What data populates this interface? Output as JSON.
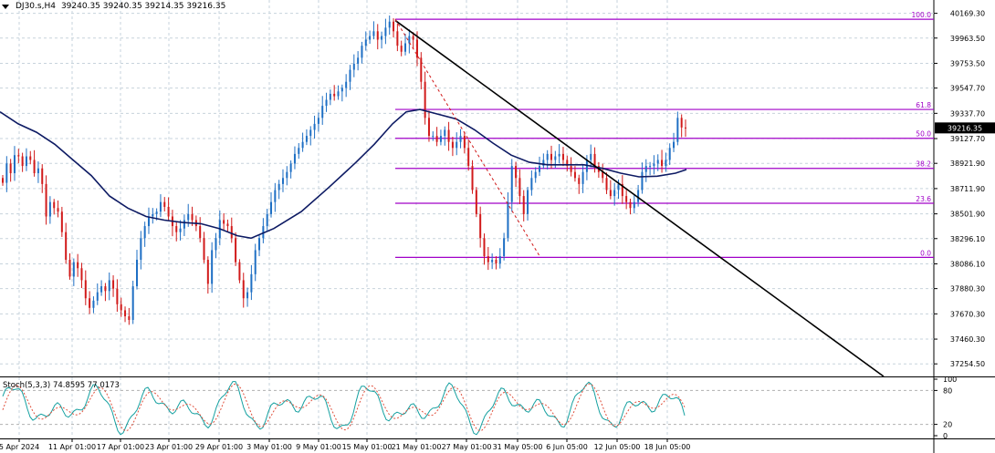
{
  "header": {
    "symbol": "DJ30.s,H4",
    "ohlc": "39240.35 39240.35 39214.35 39216.35"
  },
  "colors": {
    "bull": "#1e6fc4",
    "bear": "#d11a1a",
    "ma": "#0d1a63",
    "fib": "#a000c8",
    "trend": "#000000",
    "grid": "#c7d3dc",
    "stoch_main": "#14a0a0",
    "stoch_signal": "#e0503c",
    "price_tag": "#000000"
  },
  "chart_data": [
    {
      "type": "candlestick",
      "symbol": "DJ30.s,H4",
      "ylim": [
        37150,
        40280
      ],
      "y_ticks": [
        "40169.30",
        "39963.50",
        "39753.50",
        "39547.70",
        "39337.70",
        "39127.70",
        "38921.90",
        "38711.90",
        "38501.90",
        "38296.10",
        "38086.10",
        "37880.30",
        "37670.30",
        "37460.30",
        "37254.50"
      ],
      "x_ticks": [
        "5 Apr 2024",
        "11 Apr 01:00",
        "17 Apr 01:00",
        "23 Apr 01:00",
        "29 Apr 01:00",
        "3 May 01:00",
        "9 May 01:00",
        "15 May 01:00",
        "21 May 01:00",
        "27 May 01:00",
        "31 May 05:00",
        "6 Jun 05:00",
        "12 Jun 05:00",
        "18 Jun 05:00"
      ],
      "last_price": "39216.35",
      "closes": [
        38760,
        38920,
        38840,
        38990,
        38980,
        38900,
        38980,
        38950,
        38840,
        38880,
        38750,
        38480,
        38600,
        38550,
        38520,
        38350,
        38120,
        37980,
        38100,
        38050,
        37950,
        37800,
        37720,
        37780,
        37850,
        37900,
        37860,
        37950,
        37880,
        37750,
        37700,
        37650,
        37620,
        37900,
        38120,
        38300,
        38400,
        38480,
        38500,
        38520,
        38600,
        38560,
        38480,
        38400,
        38350,
        38380,
        38450,
        38500,
        38450,
        38400,
        38300,
        38120,
        37920,
        38200,
        38300,
        38450,
        38420,
        38400,
        38300,
        38100,
        37950,
        37800,
        37850,
        38000,
        38200,
        38300,
        38400,
        38500,
        38600,
        38700,
        38750,
        38800,
        38850,
        38920,
        39000,
        39050,
        39100,
        39150,
        39200,
        39250,
        39300,
        39400,
        39450,
        39500,
        39480,
        39520,
        39550,
        39600,
        39700,
        39750,
        39800,
        39900,
        39950,
        39980,
        40020,
        39950,
        39980,
        40050,
        40100,
        40020,
        39900,
        39850,
        39920,
        39980,
        39950,
        39800,
        39600,
        39300,
        39150,
        39150,
        39100,
        39150,
        39200,
        39100,
        39050,
        39100,
        39150,
        39050,
        38900,
        38700,
        38500,
        38300,
        38150,
        38100,
        38120,
        38090,
        38150,
        38300,
        38600,
        38900,
        38800,
        38650,
        38500,
        38700,
        38800,
        38850,
        38900,
        38950,
        39000,
        38950,
        38980,
        39000,
        38950,
        38900,
        38850,
        38800,
        38750,
        38850,
        38950,
        39000,
        38900,
        38850,
        38800,
        38700,
        38650,
        38700,
        38750,
        38650,
        38600,
        38550,
        38600,
        38700,
        38850,
        38900,
        38900,
        38920,
        38950,
        38900,
        38950,
        39050,
        39100,
        39300,
        39220,
        39216
      ],
      "ma_points": [
        [
          0,
          39350
        ],
        [
          20,
          39250
        ],
        [
          40,
          39180
        ],
        [
          60,
          39080
        ],
        [
          80,
          38950
        ],
        [
          100,
          38820
        ],
        [
          120,
          38650
        ],
        [
          140,
          38550
        ],
        [
          160,
          38480
        ],
        [
          180,
          38450
        ],
        [
          200,
          38430
        ],
        [
          220,
          38420
        ],
        [
          240,
          38380
        ],
        [
          260,
          38320
        ],
        [
          275,
          38300
        ],
        [
          300,
          38380
        ],
        [
          330,
          38520
        ],
        [
          360,
          38720
        ],
        [
          390,
          38930
        ],
        [
          410,
          39080
        ],
        [
          430,
          39250
        ],
        [
          445,
          39350
        ],
        [
          460,
          39370
        ],
        [
          475,
          39340
        ],
        [
          500,
          39290
        ],
        [
          520,
          39200
        ],
        [
          540,
          39090
        ],
        [
          560,
          38990
        ],
        [
          580,
          38930
        ],
        [
          600,
          38910
        ],
        [
          620,
          38910
        ],
        [
          640,
          38910
        ],
        [
          660,
          38880
        ],
        [
          680,
          38840
        ],
        [
          700,
          38810
        ],
        [
          720,
          38815
        ],
        [
          740,
          38840
        ],
        [
          752,
          38870
        ]
      ],
      "fib_levels": [
        {
          "label": "100.0",
          "price": 40120
        },
        {
          "label": "61.8",
          "price": 39370
        },
        {
          "label": "50.0",
          "price": 39130
        },
        {
          "label": "38.2",
          "price": 38880
        },
        {
          "label": "23.6",
          "price": 38590
        },
        {
          "label": "0.0",
          "price": 38140
        }
      ],
      "trendline": [
        [
          433,
          40110
        ],
        [
          968,
          37150
        ]
      ],
      "fib_diagonal": [
        [
          433,
          40120
        ],
        [
          592,
          38140
        ]
      ]
    },
    {
      "type": "line",
      "indicator": "Stoch(5,3,3)",
      "values_text": "74.8595 77.0173",
      "ylim": [
        0,
        100
      ],
      "y_ticks": [
        "100",
        "80",
        "20",
        "0"
      ]
    }
  ]
}
